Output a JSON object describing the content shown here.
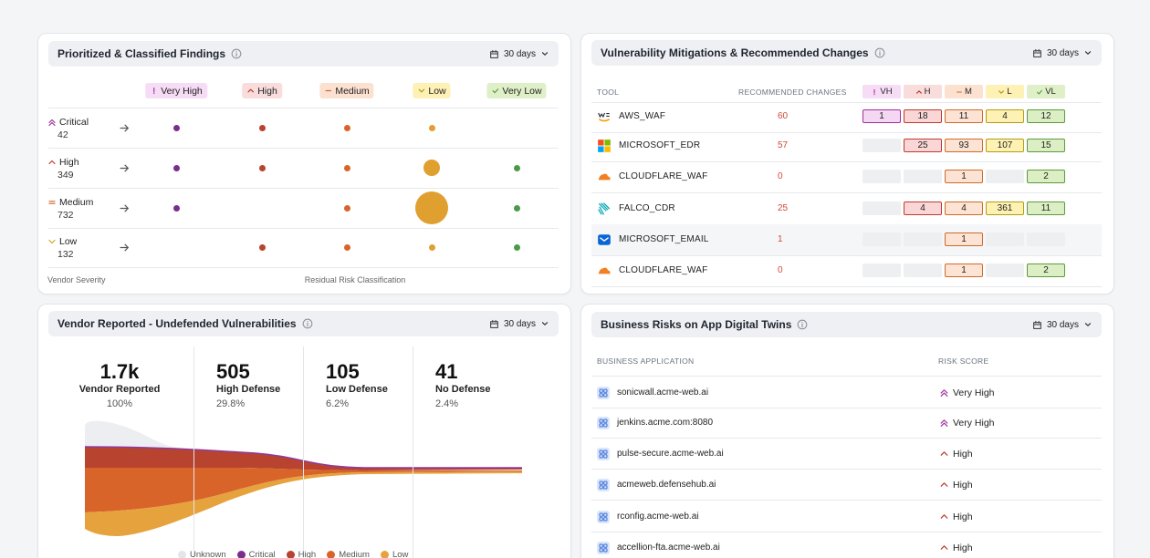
{
  "findings": {
    "title": "Prioritized & Classified Findings",
    "period": "30 days",
    "columns": [
      "Very High",
      "High",
      "Medium",
      "Low",
      "Very Low"
    ],
    "rows": [
      {
        "label": "Critical",
        "count": 42,
        "values": [
          4,
          4,
          4,
          4,
          null
        ]
      },
      {
        "label": "High",
        "count": 349,
        "values": [
          4,
          4,
          4,
          26,
          4
        ]
      },
      {
        "label": "Medium",
        "count": 732,
        "values": [
          4,
          null,
          4,
          105,
          4
        ]
      },
      {
        "label": "Low",
        "count": 132,
        "values": [
          null,
          4,
          4,
          4,
          4
        ]
      }
    ],
    "footer_left": "Vendor Severity",
    "footer_right": "Residual Risk Classification"
  },
  "mitigations": {
    "title": "Vulnerability Mitigations & Recommended Changes",
    "period": "30 days",
    "headers": [
      "TOOL",
      "RECOMMENDED CHANGES",
      "VH",
      "H",
      "M",
      "L",
      "VL"
    ],
    "rows": [
      {
        "tool": "AWS_WAF",
        "changes": 60,
        "counts": [
          1,
          18,
          11,
          4,
          12
        ]
      },
      {
        "tool": "MICROSOFT_EDR",
        "changes": 57,
        "counts": [
          null,
          25,
          93,
          107,
          15
        ]
      },
      {
        "tool": "CLOUDFLARE_WAF",
        "changes": 0,
        "counts": [
          null,
          null,
          1,
          null,
          2
        ]
      },
      {
        "tool": "FALCO_CDR",
        "changes": 25,
        "counts": [
          null,
          4,
          4,
          361,
          11
        ]
      },
      {
        "tool": "MICROSOFT_EMAIL",
        "changes": 1,
        "counts": [
          null,
          null,
          1,
          null,
          null
        ]
      },
      {
        "tool": "CLOUDFLARE_WAF",
        "changes": 0,
        "counts": [
          null,
          null,
          1,
          null,
          2
        ]
      }
    ]
  },
  "vendor": {
    "title": "Vendor Reported - Undefended Vulnerabilities",
    "period": "30 days",
    "stats": [
      {
        "value": "1.7k",
        "label": "Vendor Reported",
        "percent": "100%"
      },
      {
        "value": 505,
        "label": "High Defense",
        "percent": "29.8%"
      },
      {
        "value": 105,
        "label": "Low Defense",
        "percent": "6.2%"
      },
      {
        "value": 41,
        "label": "No Defense",
        "percent": "2.4%"
      }
    ],
    "legend": [
      {
        "name": "Unknown",
        "color": "#e3e5e9"
      },
      {
        "name": "Critical",
        "color": "#7b2d8e"
      },
      {
        "name": "High",
        "color": "#b8432f"
      },
      {
        "name": "Medium",
        "color": "#d9642a"
      },
      {
        "name": "Low",
        "color": "#e6a23c"
      }
    ]
  },
  "business": {
    "title": "Business Risks on App Digital Twins",
    "period": "30 days",
    "headers": [
      "BUSINESS APPLICATION",
      "RISK SCORE"
    ],
    "rows": [
      {
        "app": "sonicwall.acme-web.ai",
        "risk": "Very High"
      },
      {
        "app": "jenkins.acme.com:8080",
        "risk": "Very High"
      },
      {
        "app": "pulse-secure.acme-web.ai",
        "risk": "High"
      },
      {
        "app": "acmeweb.defensehub.ai",
        "risk": "High"
      },
      {
        "app": "rconfig.acme-web.ai",
        "risk": "High"
      },
      {
        "app": "accellion-fta.acme-web.ai",
        "risk": "High"
      }
    ]
  }
}
